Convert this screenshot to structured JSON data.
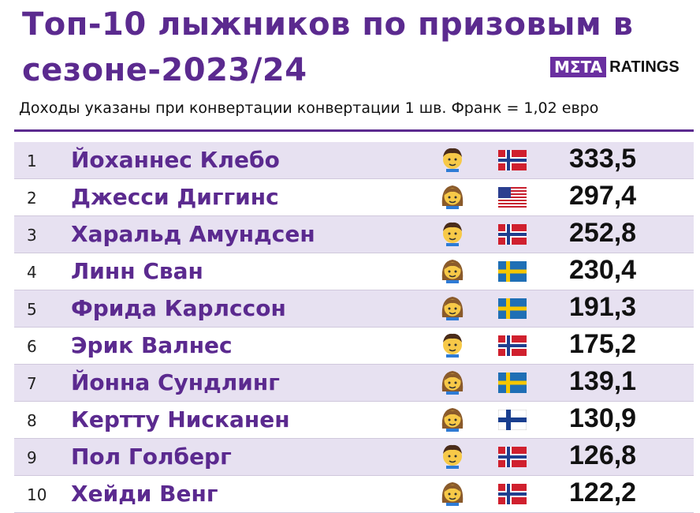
{
  "header": {
    "title": [
      "Топ-10 лыжников по призовым в",
      "сезоне-2023/24"
    ],
    "logo": {
      "left": "MΣTA",
      "right": "RATINGS"
    },
    "subtitle": "Доходы указаны при конвертации конвертации 1 шв. Франк = 1,02 евро"
  },
  "table": {
    "rows": [
      [
        "1",
        "Йоханнес Клебо",
        "333,5"
      ],
      [
        "2",
        "Джесси Диггинс",
        "297,4"
      ],
      [
        "3",
        "Харальд Амундсен",
        "252,8"
      ],
      [
        "4",
        "Линн Сван",
        "230,4"
      ],
      [
        "5",
        "Фрида Карлссон",
        "191,3"
      ],
      [
        "6",
        "Эрик Валнес",
        "175,2"
      ],
      [
        "7",
        "Йонна Сундлинг",
        "139,1"
      ],
      [
        "8",
        "Кертту Нисканен",
        "130,9"
      ],
      [
        "9",
        "Пол Голберг",
        "126,8"
      ],
      [
        "10",
        "Хейди Венг",
        "122,2"
      ]
    ]
  }
}
